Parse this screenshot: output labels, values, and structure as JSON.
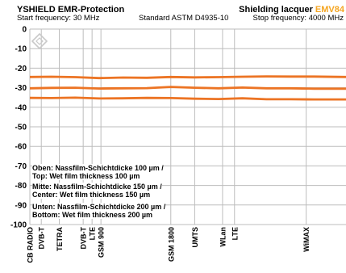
{
  "header": {
    "title_left": "YSHIELD EMR-Protection",
    "title_right_prefix": "Shielding lacquer ",
    "title_right_product": "EMV84",
    "start_frequency": "Start frequency: 30 MHz",
    "standard": "Standard ASTM D4935-10",
    "stop_frequency": "Stop frequency: 4000 MHz"
  },
  "colors": {
    "series": "#ec7424",
    "accent": "#f5a623",
    "grid": "#bdbdbd",
    "logo": "#c9c9c9"
  },
  "logo": {
    "icon": "diamond-logo-icon"
  },
  "annotations": [
    {
      "line1": "Oben: Nassfilm-Schichtdicke 100 µm /",
      "line2": "Top: Wet film thickness 100 µm"
    },
    {
      "line1": "Mitte: Nassfilm-Schichtdicke 150 µm /",
      "line2": "Center: Wet film thickness 150 µm"
    },
    {
      "line1": "Unten: Nassfilm-Schichtdicke 200 µm /",
      "line2": "Bottom: Wet film thickness 200 µm"
    }
  ],
  "chart_data": {
    "type": "line",
    "x_unit": "MHz",
    "xlim": [
      30,
      4000
    ],
    "ylim": [
      -100,
      0
    ],
    "yticks": [
      0,
      -10,
      -20,
      -30,
      -40,
      -50,
      -60,
      -70,
      -80,
      -90,
      -100
    ],
    "grid": true,
    "x": [
      30,
      300,
      600,
      900,
      1200,
      1500,
      1800,
      2100,
      2400,
      2700,
      3000,
      3300,
      3600,
      4000
    ],
    "series": [
      {
        "values": [
          -24.5,
          -24.4,
          -24.6,
          -25.1,
          -24.8,
          -24.9,
          -24.5,
          -24.7,
          -24.6,
          -24.4,
          -24.2,
          -24.3,
          -24.3,
          -24.5
        ]
      },
      {
        "values": [
          -30.3,
          -30.1,
          -30.0,
          -30.4,
          -30.3,
          -30.2,
          -29.6,
          -30.0,
          -30.3,
          -29.9,
          -30.3,
          -30.3,
          -30.5,
          -30.5
        ]
      },
      {
        "values": [
          -35.2,
          -35.3,
          -35.1,
          -35.5,
          -35.4,
          -35.2,
          -35.3,
          -35.6,
          -35.8,
          -35.4,
          -35.9,
          -35.9,
          -36.0,
          -36.0
        ]
      }
    ],
    "bands": [
      {
        "label": "CB RADIO",
        "freq": 27
      },
      {
        "label": "DVB-T",
        "freq": 174
      },
      {
        "label": "TETRA",
        "freq": 400
      },
      {
        "label": "DVB-T",
        "freq": 700
      },
      {
        "label": "LTE",
        "freq": 800
      },
      {
        "label": "GSM 900",
        "freq": 900
      },
      {
        "label": "GSM 1800",
        "freq": 1800
      },
      {
        "label": "UMTS",
        "freq": 2100
      },
      {
        "label": "WLan",
        "freq": 2450
      },
      {
        "label": "LTE",
        "freq": 2600
      },
      {
        "label": "WiMAX",
        "freq": 3500
      }
    ]
  }
}
